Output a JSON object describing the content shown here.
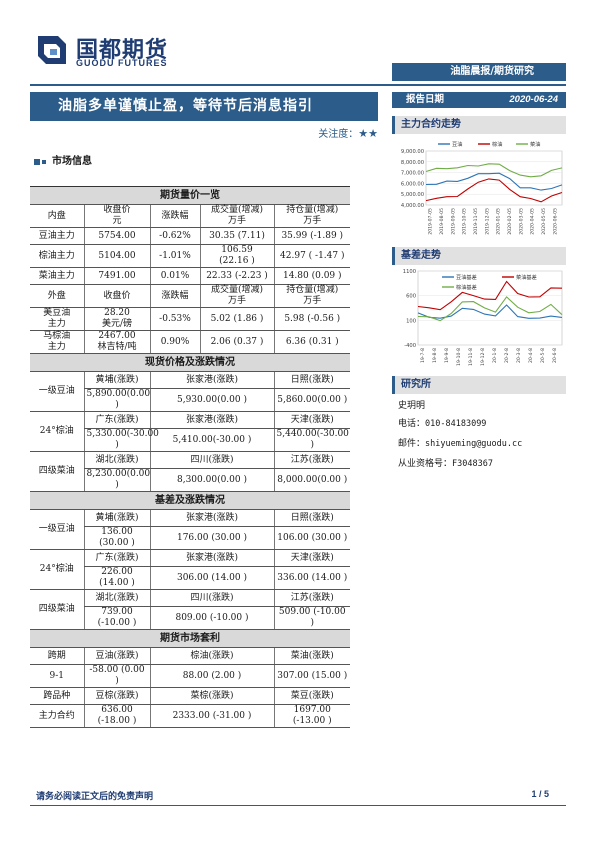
{
  "brand": {
    "name_cn": "国都期货",
    "name_en": "GUODU FUTURES"
  },
  "report_type": "油脂晨报/期货研究",
  "title": "油脂多单谨慎止盈，等待节后消息指引",
  "attention": {
    "label": "关注度：",
    "stars": "★★"
  },
  "report_date": {
    "label": "报告日期",
    "value": "2020-06-24"
  },
  "section_market": "市场信息",
  "futures_table": {
    "title": "期货量价一览",
    "header_domestic": [
      "内盘",
      "收盘价\n元",
      "涨跌幅",
      "成交量(增减)\n万手",
      "持仓量(增减)\n万手"
    ],
    "domestic_rows": [
      [
        "豆油主力",
        "5754.00",
        "-0.62%",
        "30.35 (7.11)",
        "35.99 (-1.89 )"
      ],
      [
        "棕油主力",
        "5104.00",
        "-1.01%",
        "106.59\n(22.16 )",
        "42.97 ( -1.47 )"
      ],
      [
        "菜油主力",
        "7491.00",
        "0.01%",
        "22.33 (-2.23 )",
        "14.80 (0.09 )"
      ]
    ],
    "header_foreign": [
      "外盘",
      "收盘价",
      "涨跌幅",
      "成交量(增减)\n万手",
      "持仓量(增减)\n万手"
    ],
    "foreign_rows": [
      [
        "美豆油\n主力",
        "28.20\n美元/磅",
        "-0.53%",
        "5.02 (1.86 )",
        "5.98 (-0.56 )"
      ],
      [
        "马棕油\n主力",
        "2467.00\n林吉特/吨",
        "0.90%",
        "2.06 (0.37 )",
        "6.36 (0.31 )"
      ]
    ]
  },
  "spot_table": {
    "title": "现货价格及涨跌情况",
    "groups": [
      {
        "product": "一级豆油",
        "locations": [
          "黄埔(涨跌)",
          "张家港(涨跌)",
          "日照(涨跌)"
        ],
        "values": [
          "5,890.00(0.00 )",
          "5,930.00(0.00 )",
          "5,860.00(0.00 )"
        ]
      },
      {
        "product": "24°棕油",
        "locations": [
          "广东(涨跌)",
          "张家港(涨跌)",
          "天津(涨跌)"
        ],
        "values": [
          "5,330.00(-30.00 )",
          "5,410.00(-30.00 )",
          "5,440.00(-30.00 )"
        ]
      },
      {
        "product": "四级菜油",
        "locations": [
          "湖北(涨跌)",
          "四川(涨跌)",
          "江苏(涨跌)"
        ],
        "values": [
          "8,230.00(0.00 )",
          "8,300.00(0.00 )",
          "8,000.00(0.00 )"
        ]
      }
    ]
  },
  "basis_table": {
    "title": "基差及涨跌情况",
    "groups": [
      {
        "product": "一级豆油",
        "locations": [
          "黄埔(涨跌)",
          "张家港(涨跌)",
          "日照(涨跌)"
        ],
        "values": [
          "136.00 (30.00 )",
          "176.00 (30.00 )",
          "106.00 (30.00 )"
        ]
      },
      {
        "product": "24°棕油",
        "locations": [
          "广东(涨跌)",
          "张家港(涨跌)",
          "天津(涨跌)"
        ],
        "values": [
          "226.00 (14.00 )",
          "306.00 (14.00 )",
          "336.00 (14.00 )"
        ]
      },
      {
        "product": "四级菜油",
        "locations": [
          "湖北(涨跌)",
          "四川(涨跌)",
          "江苏(涨跌)"
        ],
        "values": [
          "739.00 (-10.00 )",
          "809.00 (-10.00 )",
          "509.00 (-10.00 )"
        ]
      }
    ]
  },
  "arb_table": {
    "title": "期货市场套利",
    "header1": [
      "跨期",
      "豆油(涨跌)",
      "棕油(涨跌)",
      "菜油(涨跌)"
    ],
    "row1": [
      "9-1",
      "-58.00 (0.00 )",
      "88.00    (2.00 )",
      "307.00    (15.00 )"
    ],
    "header2": [
      "跨品种",
      "豆棕(涨跌)",
      "菜棕(涨跌)",
      "菜豆(涨跌)"
    ],
    "row2": [
      "主力合约",
      "636.00 (-18.00 )",
      "2333.00 (-31.00 )",
      "1697.00 (-13.00 )"
    ]
  },
  "side": {
    "trend_title": "主力合约走势",
    "basis_title": "基差走势",
    "research_title": "研究所",
    "analyst_name": "史玥明",
    "phone_label": "电话：",
    "phone": "010-84183099",
    "email_label": "邮件：",
    "email": "shiyueming@guodu.cc",
    "license_label": "从业资格号：",
    "license": "F3048367"
  },
  "chart_data": [
    {
      "type": "line",
      "title": "",
      "ylim": [
        4000,
        9000
      ],
      "yticks": [
        "9,000.00",
        "8,000.00",
        "7,000.00",
        "6,000.00",
        "5,000.00",
        "4,000.00"
      ],
      "xticks": [
        "2019-07-05",
        "2019-08-05",
        "2019-09-05",
        "2019-10-05",
        "2019-11-05",
        "2019-12-05",
        "2020-01-05",
        "2020-02-05",
        "2020-03-05",
        "2020-04-05",
        "2020-05-05",
        "2020-06-05"
      ],
      "legend": "top",
      "series": [
        {
          "name": "豆油",
          "color": "#2e75b6",
          "values": [
            5900,
            6000,
            6100,
            6250,
            6500,
            6800,
            7000,
            6900,
            6400,
            5700,
            5500,
            5400,
            5600,
            5750
          ]
        },
        {
          "name": "棕油",
          "color": "#c00000",
          "values": [
            4500,
            4600,
            4700,
            4900,
            5400,
            6100,
            6500,
            6200,
            5500,
            4800,
            4500,
            4400,
            4800,
            5100
          ]
        },
        {
          "name": "菜油",
          "color": "#70ad47",
          "values": [
            7200,
            7300,
            7400,
            7500,
            7550,
            7700,
            7800,
            7700,
            7300,
            6700,
            6600,
            6800,
            7100,
            7490
          ]
        }
      ]
    },
    {
      "type": "line",
      "title": "",
      "ylim": [
        -400,
        1100
      ],
      "yticks": [
        "1100",
        "600",
        "100",
        "-400"
      ],
      "xticks": [
        "19-7-8",
        "19-8-8",
        "19-9-8",
        "19-10-8",
        "19-11-8",
        "19-12-8",
        "20-1-8",
        "20-2-8",
        "20-3-8",
        "20-4-8",
        "20-5-8",
        "20-6-8"
      ],
      "legend": "top",
      "series": [
        {
          "name": "豆油基差",
          "color": "#2e75b6",
          "values": [
            250,
            180,
            120,
            200,
            350,
            300,
            250,
            180,
            400,
            200,
            120,
            150,
            200,
            136
          ]
        },
        {
          "name": "菜油基差",
          "color": "#c00000",
          "values": [
            400,
            350,
            300,
            500,
            650,
            600,
            550,
            500,
            900,
            650,
            550,
            600,
            750,
            739
          ]
        },
        {
          "name": "棕油基差",
          "color": "#70ad47",
          "values": [
            200,
            150,
            100,
            250,
            450,
            500,
            350,
            250,
            600,
            350,
            250,
            300,
            400,
            226
          ]
        }
      ]
    }
  ],
  "footer": {
    "note": "请务必阅读正文后的免责声明",
    "page": "1 / 5"
  }
}
